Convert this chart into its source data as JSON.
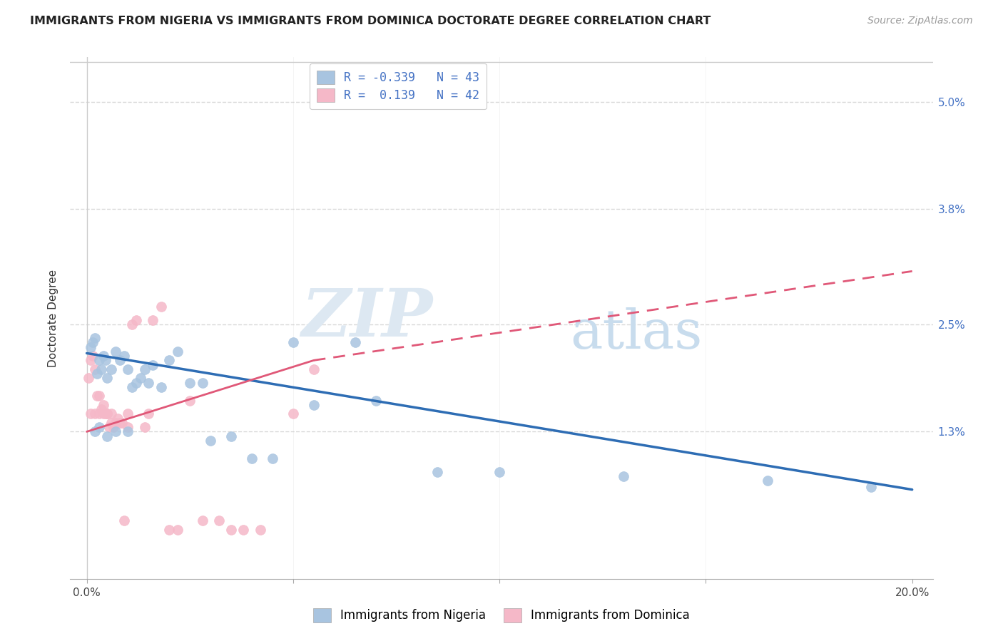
{
  "title": "IMMIGRANTS FROM NIGERIA VS IMMIGRANTS FROM DOMINICA DOCTORATE DEGREE CORRELATION CHART",
  "source": "Source: ZipAtlas.com",
  "ylabel": "Doctorate Degree",
  "ytick_vals": [
    0.0,
    1.3,
    2.5,
    3.8,
    5.0
  ],
  "ytick_labels": [
    "",
    "1.3%",
    "2.5%",
    "3.8%",
    "5.0%"
  ],
  "xtick_vals": [
    0,
    5,
    10,
    15,
    20
  ],
  "xtick_labels": [
    "0.0%",
    "",
    "",
    "",
    "20.0%"
  ],
  "xmin": -0.4,
  "xmax": 20.5,
  "ymin": -0.35,
  "ymax": 5.5,
  "nigeria_color": "#a8c4e0",
  "nigeria_edge_color": "#7aacd0",
  "nigeria_line_color": "#2e6db4",
  "dominica_color": "#f5b8c8",
  "dominica_edge_color": "#e080a0",
  "dominica_line_color": "#e05878",
  "nigeria_R": "-0.339",
  "nigeria_N": 43,
  "dominica_R": "0.139",
  "dominica_N": 42,
  "legend_label_nigeria": "Immigrants from Nigeria",
  "legend_label_dominica": "Immigrants from Dominica",
  "nigeria_line_x0": 0.0,
  "nigeria_line_y0": 2.18,
  "nigeria_line_x1": 20.0,
  "nigeria_line_y1": 0.65,
  "dominica_line_solid_x0": 0.0,
  "dominica_line_solid_y0": 1.3,
  "dominica_line_solid_x1": 5.5,
  "dominica_line_solid_y1": 2.1,
  "dominica_line_dashed_x0": 5.5,
  "dominica_line_dashed_y0": 2.1,
  "dominica_line_dashed_x1": 20.0,
  "dominica_line_dashed_y1": 3.1,
  "nigeria_x": [
    0.1,
    0.15,
    0.2,
    0.25,
    0.3,
    0.35,
    0.4,
    0.45,
    0.5,
    0.6,
    0.7,
    0.8,
    0.9,
    1.0,
    1.1,
    1.2,
    1.3,
    1.4,
    1.5,
    1.6,
    1.8,
    2.0,
    2.2,
    2.5,
    2.8,
    3.0,
    3.5,
    4.0,
    4.5,
    5.0,
    5.5,
    6.5,
    7.0,
    8.5,
    10.0,
    13.0,
    16.5,
    19.0,
    0.2,
    0.3,
    0.5,
    0.7,
    1.0
  ],
  "nigeria_y": [
    2.25,
    2.3,
    2.35,
    1.95,
    2.1,
    2.0,
    2.15,
    2.1,
    1.9,
    2.0,
    2.2,
    2.1,
    2.15,
    2.0,
    1.8,
    1.85,
    1.9,
    2.0,
    1.85,
    2.05,
    1.8,
    2.1,
    2.2,
    1.85,
    1.85,
    1.2,
    1.25,
    1.0,
    1.0,
    2.3,
    1.6,
    2.3,
    1.65,
    0.85,
    0.85,
    0.8,
    0.75,
    0.68,
    1.3,
    1.35,
    1.25,
    1.3,
    1.3
  ],
  "dominica_x": [
    0.05,
    0.1,
    0.15,
    0.2,
    0.25,
    0.3,
    0.35,
    0.4,
    0.45,
    0.5,
    0.55,
    0.6,
    0.65,
    0.7,
    0.75,
    0.8,
    0.85,
    0.9,
    1.0,
    1.1,
    1.2,
    1.4,
    1.6,
    1.8,
    2.0,
    2.2,
    2.5,
    2.8,
    3.2,
    3.5,
    3.8,
    4.2,
    5.0,
    5.5,
    0.1,
    0.2,
    0.3,
    0.4,
    0.5,
    0.6,
    1.0,
    1.5
  ],
  "dominica_y": [
    1.9,
    2.1,
    2.15,
    2.0,
    1.7,
    1.7,
    1.55,
    1.6,
    1.5,
    1.5,
    1.35,
    1.4,
    1.35,
    1.4,
    1.45,
    1.4,
    1.4,
    0.3,
    1.35,
    2.5,
    2.55,
    1.35,
    2.55,
    2.7,
    0.2,
    0.2,
    1.65,
    0.3,
    0.3,
    0.2,
    0.2,
    0.2,
    1.5,
    2.0,
    1.5,
    1.5,
    1.5,
    1.5,
    1.5,
    1.5,
    1.5,
    1.5
  ],
  "watermark_zip": "ZIP",
  "watermark_atlas": "atlas",
  "grid_color": "#d8d8d8",
  "border_color": "#cccccc"
}
